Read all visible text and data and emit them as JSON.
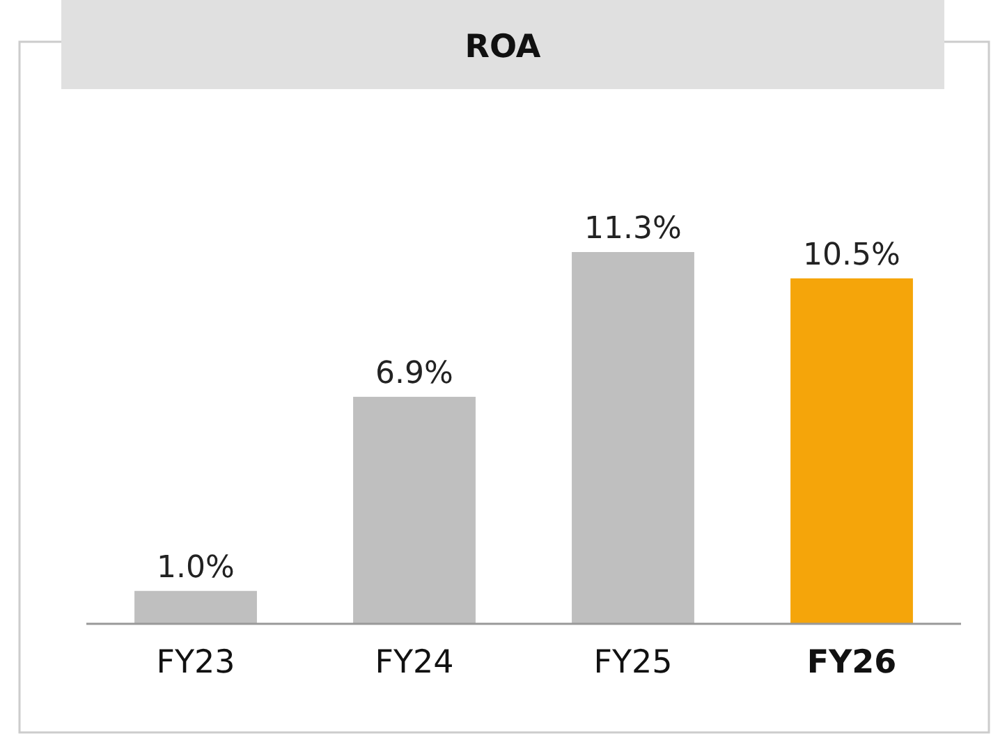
{
  "chart_data": {
    "type": "bar",
    "title": "ROA",
    "categories": [
      "FY23",
      "FY24",
      "FY25",
      "FY26"
    ],
    "values": [
      1.0,
      6.9,
      11.3,
      10.5
    ],
    "value_labels": [
      "1.0%",
      "6.9%",
      "11.3%",
      "10.5%"
    ],
    "colors": [
      "#bfbfbf",
      "#bfbfbf",
      "#bfbfbf",
      "#f5a50a"
    ]
  }
}
